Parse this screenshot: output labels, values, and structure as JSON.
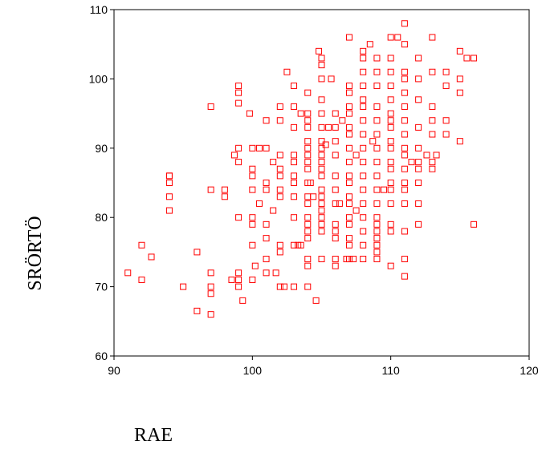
{
  "chart_data": {
    "type": "scatter",
    "title": "",
    "xlabel": "RAE",
    "ylabel": "SRÖRTÖ",
    "xlim": [
      90,
      120
    ],
    "ylim": [
      60,
      110
    ],
    "xticks": [
      90,
      100,
      110,
      120
    ],
    "yticks": [
      60,
      70,
      80,
      90,
      100,
      110
    ],
    "grid": false,
    "marker": "open-square",
    "marker_color": "#ff0000",
    "points": [
      [
        91,
        72
      ],
      [
        92,
        76
      ],
      [
        92,
        71
      ],
      [
        92.7,
        74.3
      ],
      [
        94,
        86
      ],
      [
        94,
        85
      ],
      [
        94,
        83
      ],
      [
        94,
        81
      ],
      [
        94,
        86
      ],
      [
        95,
        70
      ],
      [
        96,
        75
      ],
      [
        96,
        66.5
      ],
      [
        97,
        96
      ],
      [
        97,
        84
      ],
      [
        97,
        72
      ],
      [
        97,
        70
      ],
      [
        97,
        69
      ],
      [
        97,
        66
      ],
      [
        98,
        83
      ],
      [
        98,
        84
      ],
      [
        98.5,
        71
      ],
      [
        98.7,
        89
      ],
      [
        99,
        99
      ],
      [
        99,
        98
      ],
      [
        99,
        96.5
      ],
      [
        99,
        90
      ],
      [
        99,
        88
      ],
      [
        99,
        80
      ],
      [
        99,
        72
      ],
      [
        99,
        71
      ],
      [
        99,
        70
      ],
      [
        99.3,
        68
      ],
      [
        99.8,
        95
      ],
      [
        100,
        90
      ],
      [
        100,
        87
      ],
      [
        100,
        86
      ],
      [
        100,
        84
      ],
      [
        100,
        80
      ],
      [
        100,
        79
      ],
      [
        100,
        76
      ],
      [
        100,
        71
      ],
      [
        100.2,
        73
      ],
      [
        100.5,
        82
      ],
      [
        100.5,
        90
      ],
      [
        101,
        94
      ],
      [
        101,
        90
      ],
      [
        101,
        85
      ],
      [
        101,
        84
      ],
      [
        101,
        79
      ],
      [
        101,
        77
      ],
      [
        101,
        74
      ],
      [
        101,
        72
      ],
      [
        101.5,
        81
      ],
      [
        101.5,
        88
      ],
      [
        101.7,
        72
      ],
      [
        102,
        96
      ],
      [
        102,
        94
      ],
      [
        102,
        89
      ],
      [
        102,
        87
      ],
      [
        102,
        86
      ],
      [
        102,
        84
      ],
      [
        102,
        83
      ],
      [
        102,
        76
      ],
      [
        102,
        75
      ],
      [
        102,
        70
      ],
      [
        102.3,
        70
      ],
      [
        102.5,
        101
      ],
      [
        103,
        99
      ],
      [
        103,
        96
      ],
      [
        103,
        93
      ],
      [
        103,
        89
      ],
      [
        103,
        88
      ],
      [
        103,
        86
      ],
      [
        103,
        85
      ],
      [
        103,
        83
      ],
      [
        103,
        80
      ],
      [
        103,
        76
      ],
      [
        103,
        70
      ],
      [
        103.3,
        76
      ],
      [
        103.5,
        76
      ],
      [
        103.5,
        95
      ],
      [
        104,
        98
      ],
      [
        104,
        95
      ],
      [
        104,
        94
      ],
      [
        104,
        93
      ],
      [
        104,
        91
      ],
      [
        104,
        90
      ],
      [
        104,
        89
      ],
      [
        104,
        88
      ],
      [
        104,
        87
      ],
      [
        104,
        85
      ],
      [
        104,
        83
      ],
      [
        104,
        82
      ],
      [
        104,
        80
      ],
      [
        104,
        79
      ],
      [
        104,
        78
      ],
      [
        104,
        77
      ],
      [
        104,
        74
      ],
      [
        104,
        73
      ],
      [
        104,
        70
      ],
      [
        104.2,
        85
      ],
      [
        104.4,
        83
      ],
      [
        104.6,
        68
      ],
      [
        104.8,
        104
      ],
      [
        105,
        103
      ],
      [
        105,
        102
      ],
      [
        105,
        100
      ],
      [
        105,
        97
      ],
      [
        105,
        95
      ],
      [
        105,
        93
      ],
      [
        105,
        91
      ],
      [
        105,
        90
      ],
      [
        105,
        89
      ],
      [
        105,
        88
      ],
      [
        105,
        87
      ],
      [
        105,
        86
      ],
      [
        105,
        84
      ],
      [
        105,
        83
      ],
      [
        105,
        82
      ],
      [
        105,
        81
      ],
      [
        105,
        80
      ],
      [
        105,
        79
      ],
      [
        105,
        78
      ],
      [
        105,
        74
      ],
      [
        105.3,
        90.5
      ],
      [
        105.5,
        93
      ],
      [
        105.7,
        100
      ],
      [
        106,
        95
      ],
      [
        106,
        93
      ],
      [
        106,
        91
      ],
      [
        106,
        89
      ],
      [
        106,
        86
      ],
      [
        106,
        84
      ],
      [
        106,
        82
      ],
      [
        106,
        79
      ],
      [
        106,
        78
      ],
      [
        106,
        77
      ],
      [
        106,
        74
      ],
      [
        106,
        73
      ],
      [
        106.3,
        82
      ],
      [
        106.5,
        94
      ],
      [
        106.8,
        74
      ],
      [
        107,
        106
      ],
      [
        107,
        99
      ],
      [
        107,
        98
      ],
      [
        107,
        96
      ],
      [
        107,
        95
      ],
      [
        107,
        93
      ],
      [
        107,
        92
      ],
      [
        107,
        90
      ],
      [
        107,
        88
      ],
      [
        107,
        86
      ],
      [
        107,
        85
      ],
      [
        107,
        83
      ],
      [
        107,
        82
      ],
      [
        107,
        80
      ],
      [
        107,
        79
      ],
      [
        107,
        77
      ],
      [
        107,
        76
      ],
      [
        107,
        74
      ],
      [
        107.3,
        74
      ],
      [
        107.5,
        89
      ],
      [
        107.5,
        81
      ],
      [
        108,
        104
      ],
      [
        108,
        103
      ],
      [
        108,
        101
      ],
      [
        108,
        99
      ],
      [
        108,
        97
      ],
      [
        108,
        96
      ],
      [
        108,
        94
      ],
      [
        108,
        92
      ],
      [
        108,
        90
      ],
      [
        108,
        88
      ],
      [
        108,
        86
      ],
      [
        108,
        84
      ],
      [
        108,
        82
      ],
      [
        108,
        80
      ],
      [
        108,
        78
      ],
      [
        108,
        76
      ],
      [
        108,
        74
      ],
      [
        108.5,
        105
      ],
      [
        108.7,
        91
      ],
      [
        109,
        103
      ],
      [
        109,
        101
      ],
      [
        109,
        99
      ],
      [
        109,
        96
      ],
      [
        109,
        94
      ],
      [
        109,
        92
      ],
      [
        109,
        90
      ],
      [
        109,
        88
      ],
      [
        109,
        86
      ],
      [
        109,
        84
      ],
      [
        109,
        82
      ],
      [
        109,
        80
      ],
      [
        109,
        79
      ],
      [
        109,
        78
      ],
      [
        109,
        77
      ],
      [
        109,
        76
      ],
      [
        109,
        75
      ],
      [
        109,
        74
      ],
      [
        109.5,
        84
      ],
      [
        110,
        106
      ],
      [
        110,
        103
      ],
      [
        110,
        101
      ],
      [
        110,
        99
      ],
      [
        110,
        97
      ],
      [
        110,
        95
      ],
      [
        110,
        94
      ],
      [
        110,
        93
      ],
      [
        110,
        91
      ],
      [
        110,
        90
      ],
      [
        110,
        88
      ],
      [
        110,
        87
      ],
      [
        110,
        85
      ],
      [
        110,
        84
      ],
      [
        110,
        82
      ],
      [
        110,
        79
      ],
      [
        110,
        78
      ],
      [
        110,
        73
      ],
      [
        110.5,
        106
      ],
      [
        111,
        108
      ],
      [
        111,
        105
      ],
      [
        111,
        101
      ],
      [
        111,
        100
      ],
      [
        111,
        98
      ],
      [
        111,
        96
      ],
      [
        111,
        94
      ],
      [
        111,
        92
      ],
      [
        111,
        90
      ],
      [
        111,
        89
      ],
      [
        111,
        87
      ],
      [
        111,
        85
      ],
      [
        111,
        84
      ],
      [
        111,
        82
      ],
      [
        111,
        78
      ],
      [
        111,
        74
      ],
      [
        111,
        71.5
      ],
      [
        111.5,
        88
      ],
      [
        112,
        103
      ],
      [
        112,
        100
      ],
      [
        112,
        97
      ],
      [
        112,
        93
      ],
      [
        112,
        90
      ],
      [
        112,
        88
      ],
      [
        112,
        87
      ],
      [
        112,
        85
      ],
      [
        112,
        82
      ],
      [
        112,
        79
      ],
      [
        112.6,
        89
      ],
      [
        113,
        106
      ],
      [
        113,
        101
      ],
      [
        113,
        96
      ],
      [
        113,
        94
      ],
      [
        113,
        92
      ],
      [
        113,
        88
      ],
      [
        113,
        87
      ],
      [
        113.3,
        89
      ],
      [
        114,
        101
      ],
      [
        114,
        99
      ],
      [
        114,
        94
      ],
      [
        114,
        92
      ],
      [
        115,
        104
      ],
      [
        115,
        100
      ],
      [
        115,
        98
      ],
      [
        115,
        91
      ],
      [
        115.5,
        103
      ],
      [
        116,
        103
      ],
      [
        116,
        79
      ]
    ]
  }
}
